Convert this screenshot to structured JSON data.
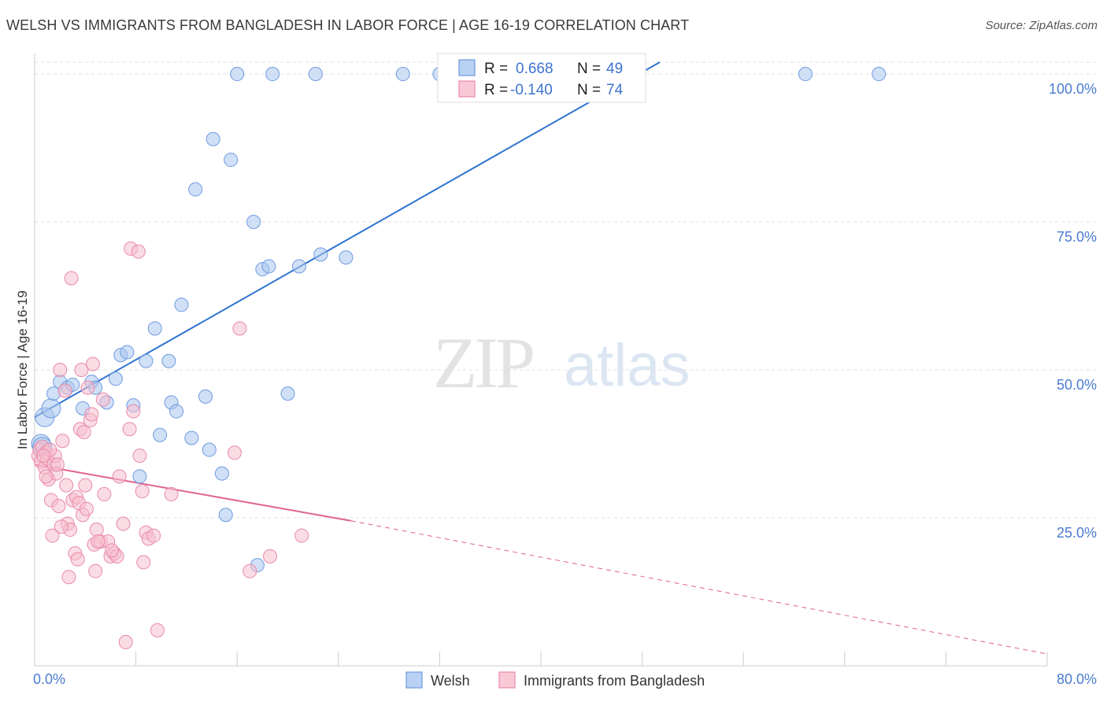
{
  "title": "WELSH VS IMMIGRANTS FROM BANGLADESH IN LABOR FORCE | AGE 16-19 CORRELATION CHART",
  "source": "Source: ZipAtlas.com",
  "watermark": {
    "zip": "ZIP",
    "atlas": "atlas"
  },
  "legend": {
    "r_label": "R =",
    "n_label": "N =",
    "rows": [
      {
        "r": "0.668",
        "n": "49"
      },
      {
        "r": "-0.140",
        "n": "74"
      }
    ]
  },
  "chart_data": {
    "type": "scatter",
    "title": "WELSH VS IMMIGRANTS FROM BANGLADESH IN LABOR FORCE | AGE 16-19 CORRELATION CHART",
    "xlabel": "",
    "ylabel": "In Labor Force | Age 16-19",
    "xlim": [
      0,
      80
    ],
    "ylim": [
      0,
      102
    ],
    "x_ticks": [
      "0.0%",
      "80.0%"
    ],
    "y_ticks": [
      {
        "value": 25,
        "label": "25.0%"
      },
      {
        "value": 50,
        "label": "50.0%"
      },
      {
        "value": 75,
        "label": "75.0%"
      },
      {
        "value": 100,
        "label": "100.0%"
      }
    ],
    "grid": true,
    "legend_position": "top-center",
    "series": [
      {
        "name": "Welsh",
        "color": "#a9c6ef",
        "stroke": "#6f9be0",
        "line_color": "#2f74d0",
        "r": 0.668,
        "n": 49,
        "trend": {
          "x": [
            0,
            49.4
          ],
          "y": [
            42,
            102
          ]
        },
        "points": [
          [
            0.5,
            37.5
          ],
          [
            0.6,
            37.0
          ],
          [
            0.8,
            42.0
          ],
          [
            1.3,
            43.5
          ],
          [
            1.5,
            46.0
          ],
          [
            2.0,
            48.0
          ],
          [
            2.6,
            47.0
          ],
          [
            3.0,
            47.5
          ],
          [
            3.8,
            43.5
          ],
          [
            4.5,
            48.0
          ],
          [
            4.8,
            47.0
          ],
          [
            5.7,
            44.5
          ],
          [
            6.4,
            48.5
          ],
          [
            6.8,
            52.5
          ],
          [
            7.3,
            53.0
          ],
          [
            7.8,
            44.0
          ],
          [
            8.3,
            32.0
          ],
          [
            8.8,
            51.5
          ],
          [
            9.5,
            57.0
          ],
          [
            9.9,
            39.0
          ],
          [
            10.6,
            51.5
          ],
          [
            10.8,
            44.5
          ],
          [
            11.2,
            43.0
          ],
          [
            11.6,
            61.0
          ],
          [
            12.4,
            38.5
          ],
          [
            12.7,
            80.5
          ],
          [
            13.5,
            45.5
          ],
          [
            13.8,
            36.5
          ],
          [
            14.1,
            89.0
          ],
          [
            14.8,
            32.5
          ],
          [
            15.1,
            25.5
          ],
          [
            15.5,
            85.5
          ],
          [
            16.0,
            100.0
          ],
          [
            17.3,
            75.0
          ],
          [
            17.6,
            17.0
          ],
          [
            18.0,
            67.0
          ],
          [
            18.5,
            67.5
          ],
          [
            18.8,
            100.0
          ],
          [
            20.0,
            46.0
          ],
          [
            20.9,
            67.5
          ],
          [
            22.2,
            100.0
          ],
          [
            22.6,
            69.5
          ],
          [
            24.6,
            69.0
          ],
          [
            29.1,
            100.0
          ],
          [
            32.0,
            100.0
          ],
          [
            33.7,
            100.0
          ],
          [
            44.6,
            100.0
          ],
          [
            60.9,
            100.0
          ],
          [
            66.7,
            100.0
          ]
        ]
      },
      {
        "name": "Immigrants from Bangladesh",
        "color": "#f6bfd0",
        "stroke": "#e98aa9",
        "line_color": "#e0638f",
        "r": -0.14,
        "n": 74,
        "trend": {
          "x": [
            0,
            25
          ],
          "y": [
            34,
            24.5
          ]
        },
        "trend_ext": {
          "x": [
            25,
            80
          ],
          "y": [
            24.5,
            2
          ]
        },
        "points": [
          [
            0.3,
            35.5
          ],
          [
            0.4,
            36.5
          ],
          [
            0.5,
            34.5
          ],
          [
            0.6,
            37.0
          ],
          [
            0.8,
            33.5
          ],
          [
            0.9,
            36.0
          ],
          [
            1.0,
            35.0
          ],
          [
            1.1,
            31.5
          ],
          [
            1.3,
            28.0
          ],
          [
            1.4,
            22.0
          ],
          [
            1.5,
            34.0
          ],
          [
            1.6,
            35.5
          ],
          [
            1.7,
            32.5
          ],
          [
            1.9,
            27.0
          ],
          [
            2.0,
            50.0
          ],
          [
            2.2,
            38.0
          ],
          [
            2.4,
            46.5
          ],
          [
            2.6,
            24.0
          ],
          [
            2.7,
            15.0
          ],
          [
            2.8,
            23.0
          ],
          [
            3.0,
            28.0
          ],
          [
            3.2,
            19.0
          ],
          [
            3.3,
            28.5
          ],
          [
            3.5,
            27.5
          ],
          [
            3.6,
            40.0
          ],
          [
            3.7,
            50.0
          ],
          [
            3.8,
            25.5
          ],
          [
            3.9,
            39.5
          ],
          [
            4.0,
            30.5
          ],
          [
            4.2,
            47.0
          ],
          [
            4.4,
            41.5
          ],
          [
            4.5,
            42.5
          ],
          [
            4.6,
            51.0
          ],
          [
            4.7,
            20.5
          ],
          [
            4.8,
            16.0
          ],
          [
            4.9,
            23.0
          ],
          [
            5.2,
            21.0
          ],
          [
            5.4,
            45.0
          ],
          [
            5.5,
            29.0
          ],
          [
            5.8,
            21.0
          ],
          [
            6.0,
            18.5
          ],
          [
            6.3,
            19.0
          ],
          [
            6.5,
            18.5
          ],
          [
            6.7,
            32.0
          ],
          [
            7.0,
            24.0
          ],
          [
            7.2,
            4.0
          ],
          [
            7.5,
            40.0
          ],
          [
            7.6,
            70.5
          ],
          [
            7.8,
            43.0
          ],
          [
            8.2,
            70.0
          ],
          [
            8.3,
            35.5
          ],
          [
            8.5,
            29.5
          ],
          [
            8.6,
            17.5
          ],
          [
            8.8,
            22.5
          ],
          [
            9.0,
            21.5
          ],
          [
            9.4,
            22.0
          ],
          [
            9.7,
            6.0
          ],
          [
            10.8,
            29.0
          ],
          [
            15.8,
            36.0
          ],
          [
            16.2,
            57.0
          ],
          [
            17.0,
            16.0
          ],
          [
            18.6,
            18.5
          ],
          [
            21.1,
            22.0
          ],
          [
            2.9,
            65.5
          ],
          [
            1.2,
            36.5
          ],
          [
            0.7,
            35.5
          ],
          [
            1.8,
            34.0
          ],
          [
            2.1,
            23.5
          ],
          [
            3.4,
            18.0
          ],
          [
            5.0,
            21.0
          ],
          [
            6.1,
            19.5
          ],
          [
            4.1,
            26.5
          ],
          [
            2.5,
            30.5
          ],
          [
            0.9,
            32.0
          ]
        ]
      }
    ]
  }
}
